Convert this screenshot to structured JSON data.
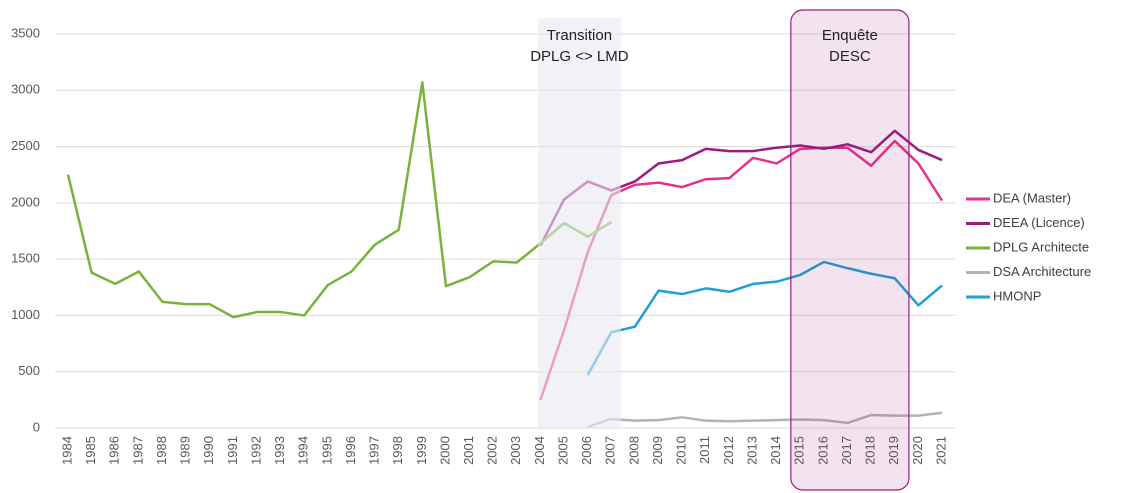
{
  "chart_data": {
    "type": "line",
    "x": [
      1984,
      1985,
      1986,
      1987,
      1988,
      1989,
      1990,
      1991,
      1992,
      1993,
      1994,
      1995,
      1996,
      1997,
      1998,
      1999,
      2000,
      2001,
      2002,
      2003,
      2004,
      2005,
      2006,
      2007,
      2008,
      2009,
      2010,
      2011,
      2012,
      2013,
      2014,
      2015,
      2016,
      2017,
      2018,
      2019,
      2020,
      2021
    ],
    "xlim": [
      1984,
      2021
    ],
    "ylim": [
      0,
      3500
    ],
    "yticks": [
      0,
      500,
      1000,
      1500,
      2000,
      2500,
      3000,
      3500
    ],
    "grid": true,
    "legend": "right",
    "series": [
      {
        "name": "DEA (Master)",
        "color": "#e2358a",
        "values": [
          null,
          null,
          null,
          null,
          null,
          null,
          null,
          null,
          null,
          null,
          null,
          null,
          null,
          null,
          null,
          null,
          null,
          null,
          null,
          null,
          250,
          870,
          1560,
          2070,
          2160,
          2180,
          2140,
          2210,
          2220,
          2400,
          2350,
          2480,
          2490,
          2490,
          2330,
          2550,
          2350,
          2020
        ]
      },
      {
        "name": "DEEA (Licence)",
        "color": "#9b1b7e",
        "values": [
          null,
          null,
          null,
          null,
          null,
          null,
          null,
          null,
          null,
          null,
          null,
          null,
          null,
          null,
          null,
          null,
          null,
          null,
          null,
          null,
          1620,
          2030,
          2190,
          2110,
          2190,
          2350,
          2380,
          2480,
          2460,
          2460,
          2490,
          2510,
          2480,
          2520,
          2450,
          2640,
          2470,
          2380
        ]
      },
      {
        "name": "DPLG Architecte",
        "color": "#78b43c",
        "values": [
          2250,
          1380,
          1280,
          1390,
          1120,
          1100,
          1100,
          985,
          1030,
          1030,
          1000,
          1270,
          1390,
          1630,
          1760,
          3070,
          1260,
          1340,
          1480,
          1470,
          1640,
          1820,
          1700,
          1830,
          null,
          null,
          null,
          null,
          null,
          null,
          null,
          null,
          null,
          null,
          null,
          null,
          null,
          null
        ]
      },
      {
        "name": "DSA Architecture",
        "color": "#b3b3b3",
        "values": [
          null,
          null,
          null,
          null,
          null,
          null,
          null,
          null,
          null,
          null,
          null,
          null,
          null,
          null,
          null,
          null,
          null,
          null,
          null,
          null,
          null,
          null,
          10,
          80,
          65,
          70,
          95,
          65,
          60,
          65,
          70,
          75,
          70,
          45,
          115,
          110,
          110,
          135
        ]
      },
      {
        "name": "HMONP",
        "color": "#1ea0d6",
        "values": [
          null,
          null,
          null,
          null,
          null,
          null,
          null,
          null,
          null,
          null,
          null,
          null,
          null,
          null,
          null,
          null,
          null,
          null,
          null,
          null,
          null,
          null,
          470,
          850,
          900,
          1220,
          1190,
          1240,
          1210,
          1280,
          1300,
          1360,
          1475,
          1420,
          1370,
          1330,
          1090,
          1265
        ]
      }
    ],
    "annotations": [
      {
        "text": [
          "Transition",
          "DPLG <> LMD"
        ],
        "x": [
          2003.9,
          2007.4
        ],
        "color": "#e8e8f0"
      },
      {
        "text": [
          "Enquête",
          "DESC"
        ],
        "x": [
          2014.6,
          2019.6
        ],
        "color": "#9b1b7e"
      }
    ]
  }
}
